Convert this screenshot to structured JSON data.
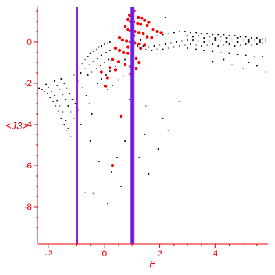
{
  "chart_data": {
    "type": "scatter",
    "title": "",
    "xlabel": "E",
    "ylabel": "<J3>",
    "xlim": [
      -2.4,
      5.9
    ],
    "ylim": [
      -9.8,
      1.7
    ],
    "grid": false,
    "legend": "none",
    "x_ticks": [
      -2,
      0,
      2,
      4
    ],
    "y_ticks": [
      0,
      -2,
      -4,
      -6,
      -8
    ],
    "colors": {
      "axis": "#e8000b",
      "black_series": "#000000",
      "red_series": "#ff0000",
      "vline_left": "#9b1fd0",
      "vline_right_outer": "#a818e0",
      "vline_right_inner": "#2f2fff"
    },
    "vertical_lines": [
      {
        "x": -1.0,
        "style": "single"
      },
      {
        "x": 1.0,
        "style": "double"
      }
    ],
    "series": [
      {
        "color": "black",
        "points": [
          [
            -2.35,
            -2.25
          ],
          [
            -2.25,
            -2.3
          ],
          [
            -2.15,
            -2.4
          ],
          [
            -2.05,
            -2.5
          ],
          [
            -1.95,
            -2.7
          ],
          [
            -1.85,
            -2.9
          ],
          [
            -1.75,
            -3.1
          ],
          [
            -1.65,
            -3.35
          ],
          [
            -1.55,
            -3.7
          ],
          [
            -1.45,
            -4.0
          ],
          [
            -1.35,
            -4.3
          ],
          [
            -2.1,
            -2.05
          ],
          [
            -2.0,
            -2.2
          ],
          [
            -1.9,
            -2.4
          ],
          [
            -1.8,
            -2.6
          ],
          [
            -1.7,
            -2.85
          ],
          [
            -1.6,
            -3.1
          ],
          [
            -1.5,
            -3.4
          ],
          [
            -1.4,
            -3.8
          ],
          [
            -1.3,
            -4.2
          ],
          [
            -1.2,
            -4.6
          ],
          [
            -1.8,
            -1.9
          ],
          [
            -1.7,
            -2.1
          ],
          [
            -1.6,
            -2.3
          ],
          [
            -1.5,
            -2.55
          ],
          [
            -1.4,
            -2.8
          ],
          [
            -1.3,
            -3.1
          ],
          [
            -1.2,
            -3.4
          ],
          [
            -1.1,
            -3.7
          ],
          [
            -1.55,
            -1.8
          ],
          [
            -1.45,
            -2.0
          ],
          [
            -1.35,
            -2.25
          ],
          [
            -1.25,
            -2.5
          ],
          [
            -1.15,
            -2.8
          ],
          [
            -1.05,
            -3.0
          ],
          [
            -0.95,
            -3.3
          ],
          [
            -0.85,
            -4.0
          ],
          [
            -1.1,
            -1.6
          ],
          [
            -0.95,
            -1.9
          ],
          [
            -0.8,
            -2.2
          ],
          [
            -0.65,
            -2.6
          ],
          [
            -0.55,
            -3.0
          ],
          [
            -0.45,
            -3.5
          ],
          [
            -0.5,
            -4.8
          ],
          [
            -0.95,
            -1.3
          ],
          [
            -0.8,
            -1.05
          ],
          [
            -0.7,
            -0.85
          ],
          [
            -0.6,
            -0.7
          ],
          [
            -0.5,
            -0.55
          ],
          [
            -0.4,
            -0.45
          ],
          [
            -0.3,
            -0.35
          ],
          [
            -0.2,
            -0.25
          ],
          [
            -0.1,
            -0.2
          ],
          [
            0.0,
            -0.1
          ],
          [
            0.1,
            -0.05
          ],
          [
            0.2,
            0.0
          ],
          [
            -0.85,
            -1.5
          ],
          [
            -0.7,
            -1.3
          ],
          [
            -0.55,
            -1.1
          ],
          [
            -0.4,
            -0.95
          ],
          [
            -0.25,
            -0.8
          ],
          [
            -0.1,
            -0.65
          ],
          [
            0.05,
            -0.5
          ],
          [
            0.2,
            -0.4
          ],
          [
            -0.6,
            -1.6
          ],
          [
            -0.45,
            -1.45
          ],
          [
            -0.3,
            -1.3
          ],
          [
            -0.15,
            -1.15
          ],
          [
            0.0,
            -1.0
          ],
          [
            0.15,
            -0.85
          ],
          [
            -0.25,
            -2.0
          ],
          [
            -0.1,
            -1.8
          ],
          [
            0.05,
            -1.6
          ],
          [
            0.2,
            -1.4
          ],
          [
            0.4,
            -1.2
          ],
          [
            0.55,
            -1.0
          ],
          [
            0.75,
            -0.85
          ],
          [
            0.1,
            -2.3
          ],
          [
            0.3,
            -2.1
          ],
          [
            0.5,
            -1.85
          ],
          [
            0.7,
            -1.65
          ],
          [
            -0.2,
            -5.8
          ],
          [
            0.25,
            -6.3
          ],
          [
            0.6,
            -7.0
          ],
          [
            -0.7,
            -7.3
          ],
          [
            -0.4,
            -7.35
          ],
          [
            0.1,
            -7.85
          ],
          [
            0.45,
            -5.6
          ],
          [
            0.9,
            -2.8
          ],
          [
            1.5,
            -3.1
          ],
          [
            2.1,
            -3.7
          ],
          [
            2.3,
            -4.3
          ],
          [
            1.95,
            -5.2
          ],
          [
            1.6,
            -6.4
          ],
          [
            1.25,
            -5.6
          ],
          [
            0.75,
            -4.8
          ],
          [
            1.45,
            -4.5
          ],
          [
            2.7,
            -2.9
          ],
          [
            1.1,
            0.05
          ],
          [
            1.3,
            0.1
          ],
          [
            1.5,
            0.15
          ],
          [
            1.7,
            0.2
          ],
          [
            1.9,
            0.3
          ],
          [
            2.1,
            0.35
          ],
          [
            2.3,
            0.4
          ],
          [
            2.5,
            0.45
          ],
          [
            2.7,
            0.5
          ],
          [
            2.9,
            0.5
          ],
          [
            3.1,
            0.45
          ],
          [
            3.3,
            0.45
          ],
          [
            3.5,
            0.4
          ],
          [
            3.7,
            0.4
          ],
          [
            3.9,
            0.35
          ],
          [
            4.1,
            0.35
          ],
          [
            4.3,
            0.35
          ],
          [
            4.5,
            0.3
          ],
          [
            4.7,
            0.3
          ],
          [
            4.9,
            0.25
          ],
          [
            5.1,
            0.25
          ],
          [
            5.3,
            0.2
          ],
          [
            5.5,
            0.2
          ],
          [
            5.7,
            0.15
          ],
          [
            1.2,
            -0.2
          ],
          [
            1.4,
            -0.2
          ],
          [
            1.6,
            -0.25
          ],
          [
            1.8,
            -0.2
          ],
          [
            2.0,
            -0.15
          ],
          [
            2.2,
            -0.1
          ],
          [
            2.4,
            -0.05
          ],
          [
            2.6,
            0.0
          ],
          [
            2.8,
            0.05
          ],
          [
            3.0,
            0.1
          ],
          [
            3.2,
            0.1
          ],
          [
            3.4,
            0.05
          ],
          [
            3.6,
            0.0
          ],
          [
            3.8,
            0.05
          ],
          [
            4.0,
            0.1
          ],
          [
            4.2,
            0.05
          ],
          [
            4.4,
            0.0
          ],
          [
            4.6,
            0.05
          ],
          [
            4.8,
            0.0
          ],
          [
            5.0,
            0.05
          ],
          [
            5.2,
            0.0
          ],
          [
            5.4,
            0.05
          ],
          [
            5.6,
            0.0
          ],
          [
            5.8,
            0.05
          ],
          [
            1.5,
            -0.35
          ],
          [
            1.7,
            -0.4
          ],
          [
            1.9,
            -0.35
          ],
          [
            2.1,
            -0.35
          ],
          [
            2.3,
            -0.3
          ],
          [
            2.5,
            -0.25
          ],
          [
            2.7,
            -0.2
          ],
          [
            2.9,
            -0.15
          ],
          [
            3.1,
            -0.1
          ],
          [
            3.3,
            -0.15
          ],
          [
            3.5,
            -0.2
          ],
          [
            3.7,
            -0.15
          ],
          [
            3.9,
            -0.1
          ],
          [
            4.1,
            -0.2
          ],
          [
            4.3,
            -0.15
          ],
          [
            4.5,
            -0.1
          ],
          [
            4.7,
            -0.2
          ],
          [
            4.9,
            -0.15
          ],
          [
            5.1,
            -0.1
          ],
          [
            5.3,
            -0.15
          ],
          [
            5.5,
            -0.1
          ],
          [
            5.7,
            -0.05
          ],
          [
            3.0,
            0.3
          ],
          [
            3.2,
            0.25
          ],
          [
            3.4,
            0.3
          ],
          [
            3.6,
            0.2
          ],
          [
            3.8,
            0.25
          ],
          [
            4.0,
            0.2
          ],
          [
            4.2,
            0.25
          ],
          [
            4.4,
            0.2
          ],
          [
            4.6,
            0.15
          ],
          [
            4.8,
            0.2
          ],
          [
            5.0,
            0.15
          ],
          [
            5.2,
            0.1
          ],
          [
            5.4,
            0.15
          ],
          [
            5.6,
            0.1
          ],
          [
            5.8,
            0.15
          ],
          [
            3.0,
            -0.3
          ],
          [
            3.3,
            -0.35
          ],
          [
            3.6,
            -0.4
          ],
          [
            3.9,
            -0.45
          ],
          [
            4.2,
            -0.5
          ],
          [
            4.5,
            -0.55
          ],
          [
            4.8,
            -0.6
          ],
          [
            5.1,
            -0.65
          ],
          [
            5.4,
            -0.7
          ],
          [
            5.7,
            -0.7
          ],
          [
            3.9,
            -0.95
          ],
          [
            4.6,
            -1.1
          ],
          [
            5.0,
            -1.3
          ],
          [
            5.2,
            -1.0
          ],
          [
            5.5,
            -1.15
          ],
          [
            5.8,
            -1.45
          ],
          [
            4.3,
            -0.85
          ],
          [
            2.2,
            1.2
          ]
        ]
      },
      {
        "color": "red",
        "points": [
          [
            1.08,
            1.5
          ],
          [
            1.22,
            1.2
          ],
          [
            1.35,
            1.15
          ],
          [
            1.45,
            1.05
          ],
          [
            1.6,
            0.95
          ],
          [
            0.9,
            1.3
          ],
          [
            0.85,
            1.1
          ],
          [
            0.95,
            1.0
          ],
          [
            1.05,
            0.95
          ],
          [
            1.2,
            0.9
          ],
          [
            1.3,
            0.85
          ],
          [
            1.55,
            0.8
          ],
          [
            1.75,
            0.6
          ],
          [
            1.9,
            0.5
          ],
          [
            2.05,
            0.45
          ],
          [
            0.75,
            0.75
          ],
          [
            0.85,
            0.6
          ],
          [
            0.95,
            0.55
          ],
          [
            1.1,
            0.5
          ],
          [
            1.25,
            0.45
          ],
          [
            1.4,
            0.4
          ],
          [
            1.55,
            0.25
          ],
          [
            1.7,
            0.2
          ],
          [
            0.55,
            0.2
          ],
          [
            0.65,
            0.1
          ],
          [
            0.8,
            0.05
          ],
          [
            0.95,
            0.0
          ],
          [
            1.1,
            -0.05
          ],
          [
            1.25,
            -0.1
          ],
          [
            1.45,
            -0.15
          ],
          [
            0.4,
            -0.3
          ],
          [
            0.55,
            -0.4
          ],
          [
            0.7,
            -0.5
          ],
          [
            0.85,
            -0.55
          ],
          [
            1.0,
            -0.65
          ],
          [
            1.15,
            -0.8
          ],
          [
            0.3,
            -0.85
          ],
          [
            0.5,
            -0.95
          ],
          [
            0.75,
            -1.1
          ],
          [
            0.95,
            -1.2
          ],
          [
            1.15,
            -1.3
          ],
          [
            0.2,
            -1.25
          ],
          [
            0.4,
            -1.35
          ],
          [
            0.1,
            -1.75
          ],
          [
            -0.1,
            -1.45
          ],
          [
            0.95,
            -1.55
          ],
          [
            1.25,
            -1.0
          ],
          [
            0.05,
            -2.15
          ],
          [
            0.6,
            -3.6
          ],
          [
            0.3,
            -6.0
          ],
          [
            1.3,
            -0.3
          ],
          [
            1.05,
            0.3
          ],
          [
            0.85,
            -0.25
          ]
        ]
      }
    ]
  }
}
